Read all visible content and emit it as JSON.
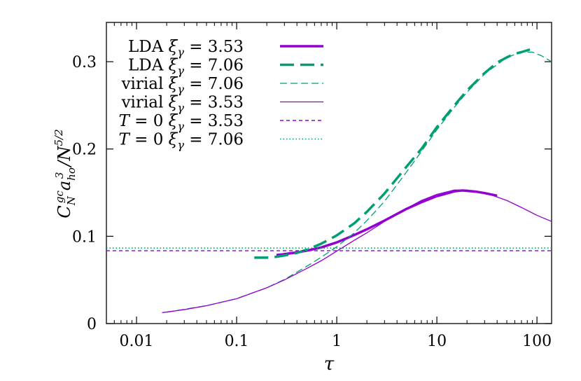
{
  "chart_data": {
    "type": "line",
    "title": "",
    "xlabel": "τ",
    "ylabel": "C_N^{gc} a_{ho}^3 / N^{5/2}",
    "xscale": "log",
    "xlim": [
      0.005,
      140
    ],
    "ylim": [
      0,
      0.345
    ],
    "x_ticks": [
      {
        "value": 0.01,
        "label": "0.01"
      },
      {
        "value": 0.1,
        "label": "0.1"
      },
      {
        "value": 1,
        "label": "1"
      },
      {
        "value": 10,
        "label": "10"
      },
      {
        "value": 100,
        "label": "100"
      }
    ],
    "y_ticks": [
      {
        "value": 0,
        "label": "0"
      },
      {
        "value": 0.1,
        "label": "0.1"
      },
      {
        "value": 0.2,
        "label": "0.2"
      },
      {
        "value": 0.3,
        "label": "0.3"
      }
    ],
    "legend_position": "top-left",
    "series": [
      {
        "name": "LDA ξγ = 3.53",
        "label": {
          "prefix": "LDA",
          "eq": "= 3.53"
        },
        "color": "#9400d3",
        "style": "thick-solid",
        "x": [
          0.25,
          0.3,
          0.4,
          0.5,
          0.7,
          1.0,
          1.5,
          2,
          3,
          5,
          7,
          10,
          15,
          18,
          20,
          25,
          30,
          40
        ],
        "y": [
          0.0785,
          0.0795,
          0.0815,
          0.0835,
          0.0872,
          0.093,
          0.1015,
          0.108,
          0.118,
          0.1315,
          0.139,
          0.146,
          0.1515,
          0.1525,
          0.152,
          0.151,
          0.1495,
          0.1465
        ]
      },
      {
        "name": "LDA ξγ = 7.06",
        "label": {
          "prefix": "LDA",
          "eq": "= 7.06"
        },
        "color": "#009e73",
        "style": "thick-dash",
        "x": [
          0.15,
          0.2,
          0.25,
          0.3,
          0.4,
          0.5,
          0.7,
          1.0,
          1.5,
          2,
          3,
          5,
          7,
          10,
          15,
          20,
          30,
          40,
          50,
          60,
          70,
          80,
          85
        ],
        "y": [
          0.0755,
          0.0755,
          0.0765,
          0.078,
          0.081,
          0.0845,
          0.0915,
          0.101,
          0.115,
          0.128,
          0.149,
          0.18,
          0.2,
          0.225,
          0.25,
          0.267,
          0.287,
          0.299,
          0.305,
          0.309,
          0.311,
          0.313,
          0.314
        ]
      },
      {
        "name": "virial ξγ = 7.06",
        "label": {
          "prefix": "virial",
          "eq": "= 7.06"
        },
        "color": "#009e73",
        "style": "thin-dash",
        "x": [
          0.02,
          0.05,
          0.1,
          0.2,
          0.3,
          0.5,
          0.7,
          1,
          1.5,
          2,
          3,
          5,
          7,
          10,
          15,
          20,
          30,
          50,
          70,
          90,
          110,
          140
        ],
        "y": [
          0.013,
          0.0205,
          0.0285,
          0.041,
          0.0505,
          0.0655,
          0.076,
          0.088,
          0.104,
          0.118,
          0.14,
          0.174,
          0.197,
          0.222,
          0.248,
          0.265,
          0.286,
          0.305,
          0.311,
          0.311,
          0.307,
          0.3
        ]
      },
      {
        "name": "virial ξγ = 3.53",
        "label": {
          "prefix": "virial",
          "eq": "= 3.53"
        },
        "color": "#9400d3",
        "style": "thin-solid",
        "x": [
          0.018,
          0.03,
          0.05,
          0.1,
          0.2,
          0.3,
          0.5,
          0.7,
          1,
          1.5,
          2,
          3,
          5,
          7,
          10,
          15,
          20,
          30,
          50,
          70,
          100,
          140
        ],
        "y": [
          0.0125,
          0.016,
          0.0205,
          0.0285,
          0.041,
          0.05,
          0.063,
          0.072,
          0.083,
          0.0955,
          0.104,
          0.117,
          0.132,
          0.141,
          0.148,
          0.153,
          0.153,
          0.15,
          0.141,
          0.133,
          0.124,
          0.117
        ]
      },
      {
        "name": "T = 0 ξγ = 3.53",
        "label": {
          "prefix": "T = 0",
          "eq": "= 3.53"
        },
        "color": "#9400d3",
        "style": "short-dash",
        "x": [
          0.005,
          140
        ],
        "y": [
          0.0835,
          0.0835
        ]
      },
      {
        "name": "T = 0 ξγ = 7.06",
        "label": {
          "prefix": "T = 0",
          "eq": "= 7.06"
        },
        "color": "#009e73",
        "style": "dotted",
        "x": [
          0.005,
          140
        ],
        "y": [
          0.0865,
          0.0865
        ]
      }
    ]
  }
}
